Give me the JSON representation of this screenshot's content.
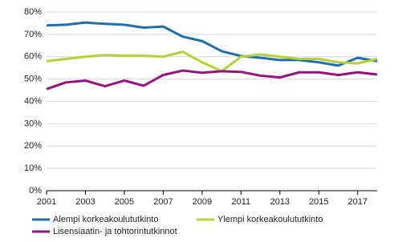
{
  "chart_data": {
    "type": "line",
    "x": [
      2001,
      2002,
      2003,
      2004,
      2005,
      2006,
      2007,
      2008,
      2009,
      2010,
      2011,
      2012,
      2013,
      2014,
      2015,
      2016,
      2017,
      2018
    ],
    "series": [
      {
        "name": "Alempi korkeakoulututkinto",
        "color": "#1f6fae",
        "values": [
          74,
          74.3,
          75.3,
          74.7,
          74.3,
          73,
          73.5,
          69,
          67,
          62.5,
          60.3,
          59.5,
          58.5,
          58.5,
          57.5,
          56,
          59.5,
          58
        ]
      },
      {
        "name": "Ylempi korkeakoulututkinto",
        "color": "#b4d235",
        "values": [
          58,
          59,
          60,
          60.7,
          60.4,
          60.4,
          60,
          62.2,
          57.5,
          53.5,
          60,
          61,
          60,
          59,
          59,
          57.5,
          57,
          59
        ]
      },
      {
        "name": "Lisensiaatin- ja tohtorintutkinnot",
        "color": "#96137f",
        "values": [
          45.5,
          48.5,
          49.3,
          46.8,
          49.3,
          47,
          51.8,
          53.8,
          52.8,
          53.5,
          53.2,
          51.5,
          50.7,
          53,
          53,
          51.8,
          53,
          52
        ]
      }
    ],
    "xlim": [
      2001,
      2018
    ],
    "xticks": [
      2001,
      2003,
      2005,
      2007,
      2009,
      2011,
      2013,
      2015,
      2017
    ],
    "ylim": [
      0,
      80
    ],
    "yticks": [
      {
        "value": 0,
        "label": "0%"
      },
      {
        "value": 10,
        "label": "10%"
      },
      {
        "value": 20,
        "label": "20%"
      },
      {
        "value": 30,
        "label": "30%"
      },
      {
        "value": 40,
        "label": "40%"
      },
      {
        "value": 50,
        "label": "50%"
      },
      {
        "value": 60,
        "label": "60%"
      },
      {
        "value": 70,
        "label": "70%"
      },
      {
        "value": 80,
        "label": "80%"
      }
    ],
    "grid": true
  }
}
